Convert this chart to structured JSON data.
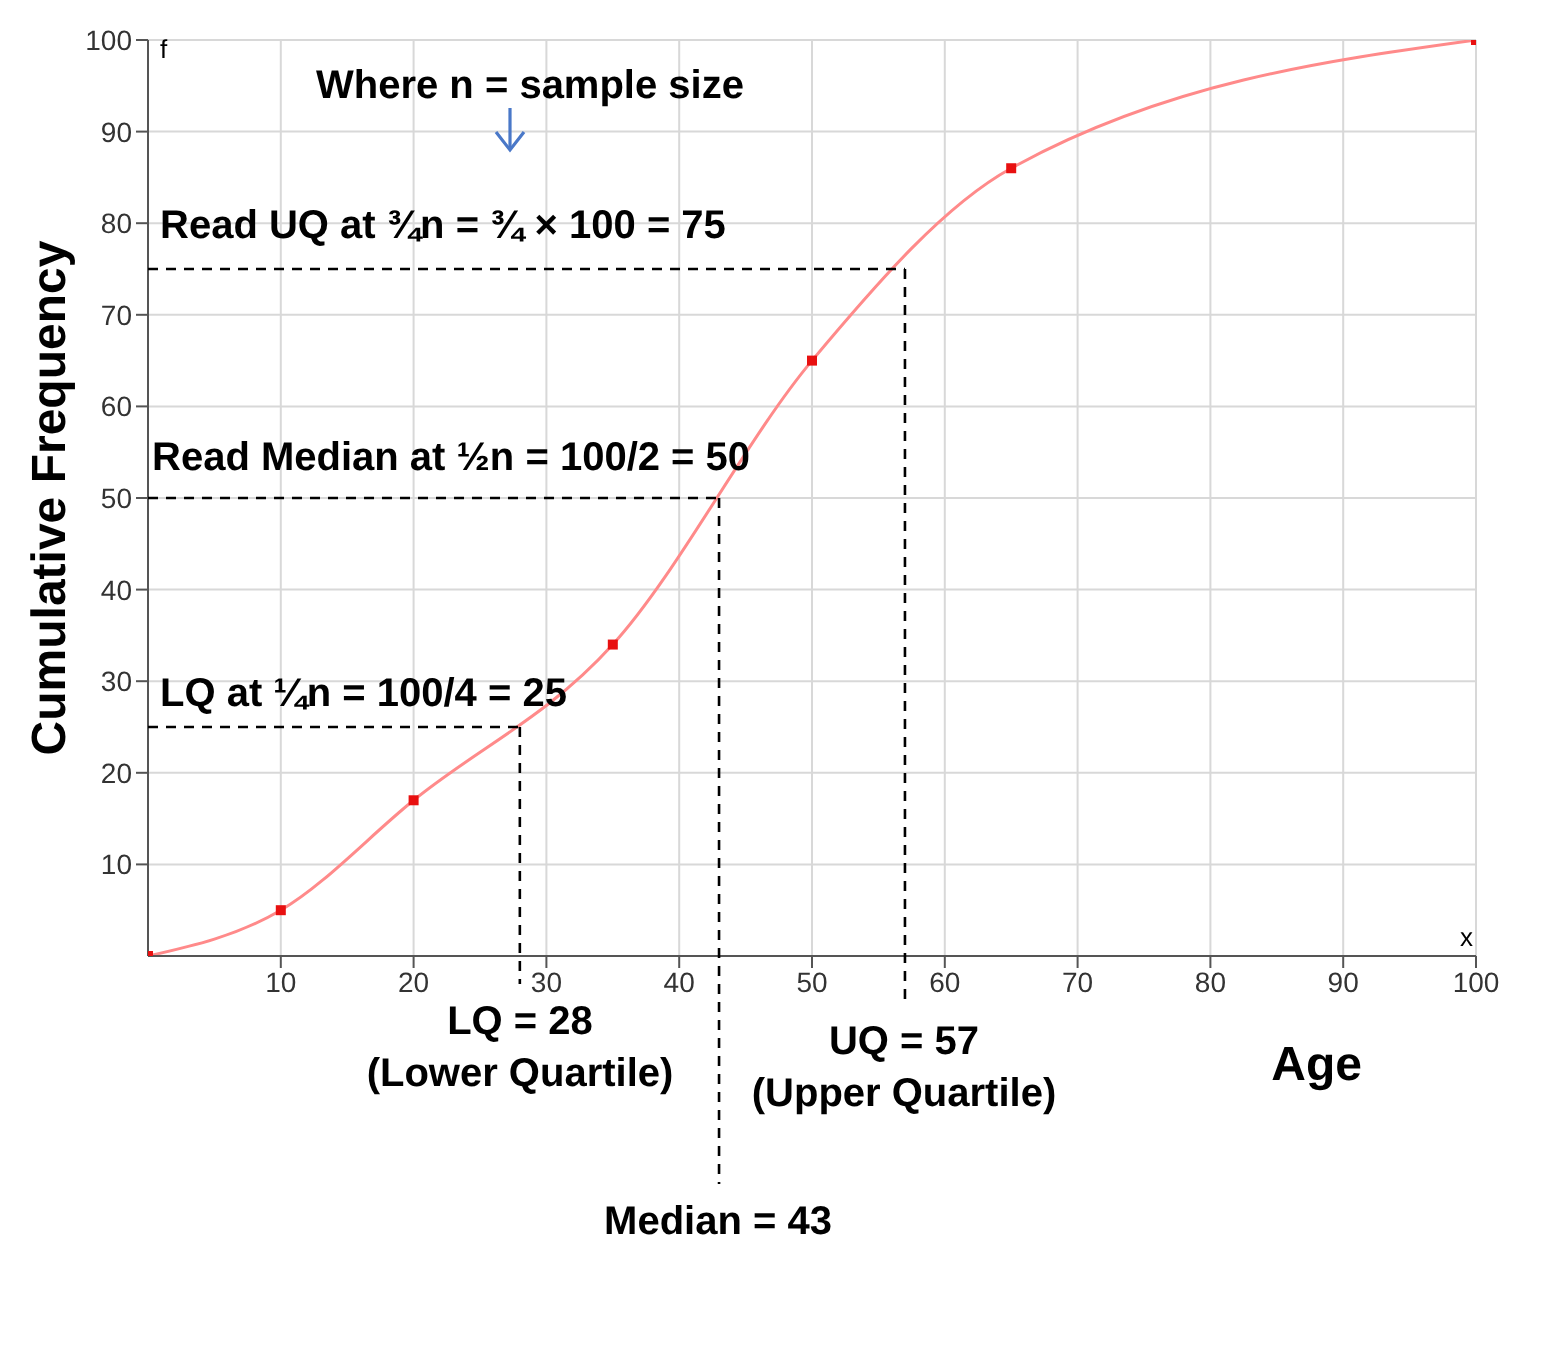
{
  "chart_data": {
    "type": "line",
    "xlabel": "Age",
    "ylabel": "Cumulative Frequency",
    "x": [
      0,
      10,
      20,
      35,
      50,
      65,
      100
    ],
    "series": [
      {
        "color": "#ff8a8a",
        "values": [
          0,
          5,
          17,
          34,
          65,
          86,
          100
        ]
      }
    ],
    "marker": "square",
    "ref_lines": [
      {
        "axis": "y",
        "value": 25,
        "color": "#000000",
        "line_style": "dashed"
      },
      {
        "axis": "y",
        "value": 50,
        "color": "#000000",
        "line_style": "dashed"
      },
      {
        "axis": "y",
        "value": 75,
        "color": "#000000",
        "line_style": "dashed"
      },
      {
        "axis": "x",
        "value": 28,
        "color": "#000000",
        "line_style": "dashed"
      },
      {
        "axis": "x",
        "value": 43,
        "color": "#000000",
        "line_style": "dashed"
      },
      {
        "axis": "x",
        "value": 57,
        "color": "#000000",
        "line_style": "dashed"
      }
    ],
    "xlim": [
      0,
      100
    ],
    "xticks": [
      10,
      20,
      30,
      40,
      50,
      60,
      70,
      80,
      90,
      100
    ],
    "ylim": [
      0,
      100
    ],
    "yticks": [
      10,
      20,
      30,
      40,
      50,
      60,
      70,
      80,
      90,
      100
    ],
    "grid": true,
    "annotations": [
      "Where n = sample size",
      "Read UQ at ¾n = ¾ × 100 = 75",
      "Read Median at ½n = 100/2 = 50",
      "LQ at ¼n = 100/4 = 25",
      "f",
      "x",
      "LQ = 28\n(Lower Quartile)",
      "UQ = 57\n(Upper Quartile)",
      "Median = 43"
    ]
  }
}
